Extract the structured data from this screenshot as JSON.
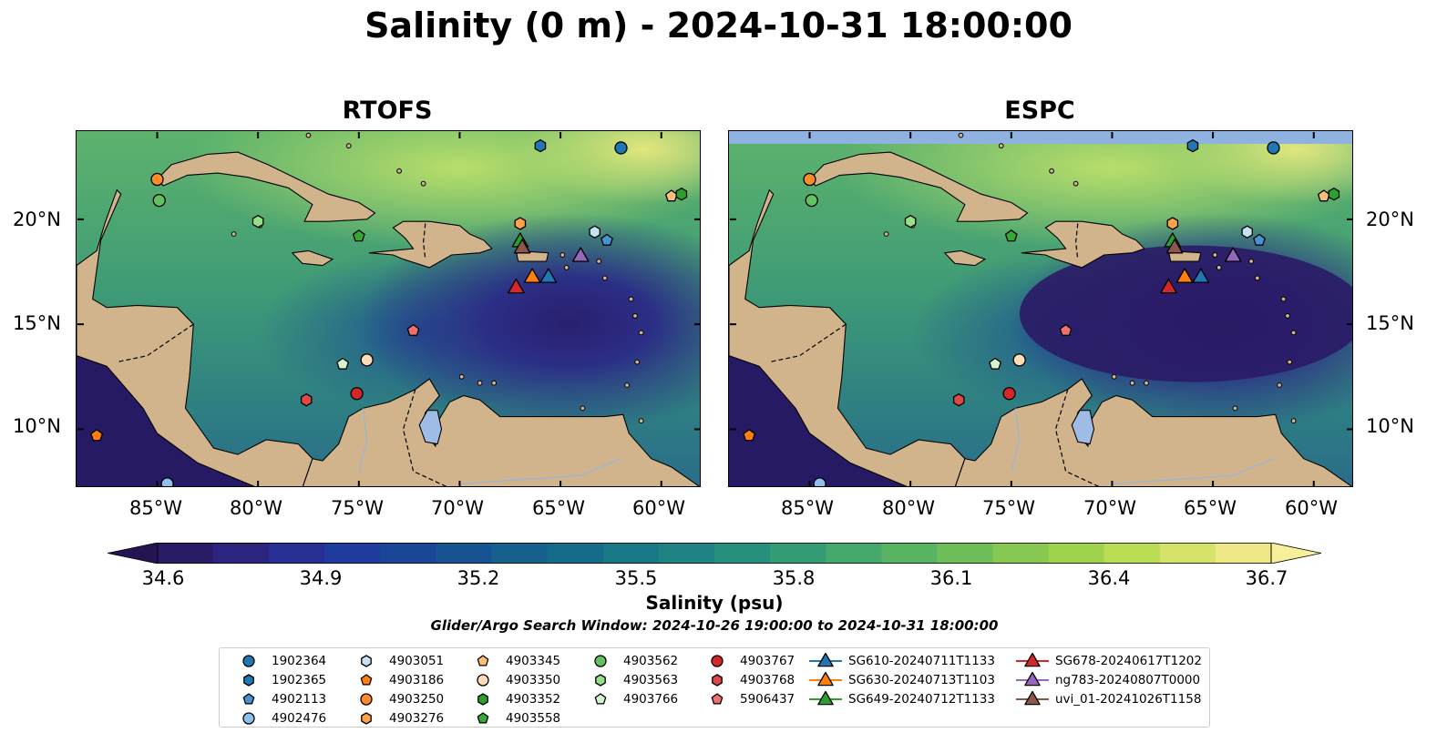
{
  "title": "Salinity (0 m) - 2024-10-31 18:00:00",
  "panels": [
    {
      "name": "RTOFS"
    },
    {
      "name": "ESPC"
    }
  ],
  "lat_labels": [
    "20°N",
    "15°N",
    "10°N"
  ],
  "lon_labels": [
    "85°W",
    "80°W",
    "75°W",
    "70°W",
    "65°W",
    "60°W"
  ],
  "colorbar": {
    "label": "Salinity (psu)",
    "ticks": [
      "34.6",
      "34.9",
      "35.2",
      "35.5",
      "35.8",
      "36.1",
      "36.4",
      "36.7"
    ],
    "min": 34.6,
    "max": 36.7,
    "colors": [
      "#2a1b66",
      "#2b2580",
      "#272f94",
      "#1f3b9d",
      "#1a4698",
      "#175392",
      "#15608d",
      "#156c8a",
      "#187886",
      "#1e8382",
      "#27907c",
      "#349c75",
      "#45a86c",
      "#58b362",
      "#6dbe58",
      "#86c851",
      "#a0d34d",
      "#bbdc55",
      "#d5e36a",
      "#eee886"
    ],
    "under_color": "#241552",
    "over_color": "#f8ef9a"
  },
  "search_window": "Glider/Argo Search Window: 2024-10-26 19:00:00 to 2024-10-31 18:00:00",
  "legend": [
    {
      "label": "1902364",
      "marker": "circle",
      "color": "#1f77b4"
    },
    {
      "label": "1902365",
      "marker": "hexagon",
      "color": "#1f77b4"
    },
    {
      "label": "4902113",
      "marker": "pentagon",
      "color": "#4a90d0"
    },
    {
      "label": "4902476",
      "marker": "circle",
      "color": "#8ec0ea"
    },
    {
      "label": "4903051",
      "marker": "hexagon",
      "color": "#c6e2f5"
    },
    {
      "label": "4903186",
      "marker": "pentagon",
      "color": "#ff7f0e"
    },
    {
      "label": "4903250",
      "marker": "circle",
      "color": "#ff8c29"
    },
    {
      "label": "4903276",
      "marker": "hexagon",
      "color": "#ffa04a"
    },
    {
      "label": "4903345",
      "marker": "pentagon",
      "color": "#ffbe7a"
    },
    {
      "label": "4903350",
      "marker": "circle",
      "color": "#ffdcb8"
    },
    {
      "label": "4903352",
      "marker": "hexagon",
      "color": "#2ca02c"
    },
    {
      "label": "4903558",
      "marker": "pentagon",
      "color": "#35a835"
    },
    {
      "label": "4903562",
      "marker": "circle",
      "color": "#62c162"
    },
    {
      "label": "4903563",
      "marker": "hexagon",
      "color": "#98df8a"
    },
    {
      "label": "4903766",
      "marker": "pentagon",
      "color": "#d4f5cc"
    },
    {
      "label": "4903767",
      "marker": "circle",
      "color": "#d62728"
    },
    {
      "label": "4903768",
      "marker": "hexagon",
      "color": "#e04848"
    },
    {
      "label": "5906437",
      "marker": "pentagon",
      "color": "#f07070"
    },
    {
      "label": "SG610-20240711T1133",
      "marker": "triangle",
      "color": "#1f77b4"
    },
    {
      "label": "SG630-20240713T1103",
      "marker": "triangle",
      "color": "#ff7f0e"
    },
    {
      "label": "SG649-20240712T1133",
      "marker": "triangle",
      "color": "#2ca02c"
    },
    {
      "label": "SG678-20240617T1202",
      "marker": "triangle",
      "color": "#d62728"
    },
    {
      "label": "ng783-20240807T0000",
      "marker": "triangle",
      "color": "#9467bd"
    },
    {
      "label": "uvi_01-20241026T1158",
      "marker": "triangle",
      "color": "#8c564b"
    }
  ],
  "map_data": {
    "lon_range": [
      -89,
      -58
    ],
    "lat_range": [
      7.2,
      24.2
    ],
    "land_color": "#d2b48c",
    "platforms": [
      {
        "id": "1902364",
        "marker": "circle",
        "color": "#1f77b4",
        "lon": -62.0,
        "lat": 23.4
      },
      {
        "id": "1902365",
        "marker": "hexagon",
        "color": "#1f77b4",
        "lon": -66.0,
        "lat": 23.5
      },
      {
        "id": "4902113",
        "marker": "pentagon",
        "color": "#4a90d0",
        "lon": -62.7,
        "lat": 19.0
      },
      {
        "id": "4902476",
        "marker": "circle",
        "color": "#8ec0ea",
        "lon": -84.5,
        "lat": 7.4
      },
      {
        "id": "4903051",
        "marker": "hexagon",
        "color": "#c6e2f5",
        "lon": -63.3,
        "lat": 19.4
      },
      {
        "id": "4903186",
        "marker": "pentagon",
        "color": "#ff7f0e",
        "lon": -88.0,
        "lat": 9.7
      },
      {
        "id": "4903250",
        "marker": "circle",
        "color": "#ff8c29",
        "lon": -85.0,
        "lat": 21.9
      },
      {
        "id": "4903276",
        "marker": "hexagon",
        "color": "#ffa04a",
        "lon": -67.0,
        "lat": 19.8
      },
      {
        "id": "4903345",
        "marker": "pentagon",
        "color": "#ffbe7a",
        "lon": -59.5,
        "lat": 21.1
      },
      {
        "id": "4903350",
        "marker": "circle",
        "color": "#ffdcb8",
        "lon": -74.6,
        "lat": 13.3
      },
      {
        "id": "4903352",
        "marker": "hexagon",
        "color": "#2ca02c",
        "lon": -59.0,
        "lat": 21.2
      },
      {
        "id": "4903558",
        "marker": "pentagon",
        "color": "#35a835",
        "lon": -75.0,
        "lat": 19.2
      },
      {
        "id": "4903562",
        "marker": "circle",
        "color": "#62c162",
        "lon": -84.9,
        "lat": 20.9
      },
      {
        "id": "4903563",
        "marker": "hexagon",
        "color": "#98df8a",
        "lon": -80.0,
        "lat": 19.9
      },
      {
        "id": "4903766",
        "marker": "pentagon",
        "color": "#d4f5cc",
        "lon": -75.8,
        "lat": 13.1
      },
      {
        "id": "4903767",
        "marker": "circle",
        "color": "#d62728",
        "lon": -75.1,
        "lat": 11.7
      },
      {
        "id": "4903768",
        "marker": "hexagon",
        "color": "#e04848",
        "lon": -77.6,
        "lat": 11.4
      },
      {
        "id": "5906437",
        "marker": "pentagon",
        "color": "#f07070",
        "lon": -72.3,
        "lat": 14.7
      },
      {
        "id": "SG610-20240711T1133",
        "marker": "triangle",
        "color": "#1f77b4",
        "lon": -65.6,
        "lat": 17.3
      },
      {
        "id": "SG630-20240713T1103",
        "marker": "triangle",
        "color": "#ff7f0e",
        "lon": -66.4,
        "lat": 17.3
      },
      {
        "id": "SG649-20240712T1133",
        "marker": "triangle",
        "color": "#2ca02c",
        "lon": -67.0,
        "lat": 19.0
      },
      {
        "id": "SG678-20240617T1202",
        "marker": "triangle",
        "color": "#d62728",
        "lon": -67.2,
        "lat": 16.8
      },
      {
        "id": "ng783-20240807T0000",
        "marker": "triangle",
        "color": "#9467bd",
        "lon": -64.0,
        "lat": 18.3
      },
      {
        "id": "uvi_01-20241026T1158",
        "marker": "triangle",
        "color": "#8c564b",
        "lon": -66.9,
        "lat": 18.7
      }
    ]
  }
}
